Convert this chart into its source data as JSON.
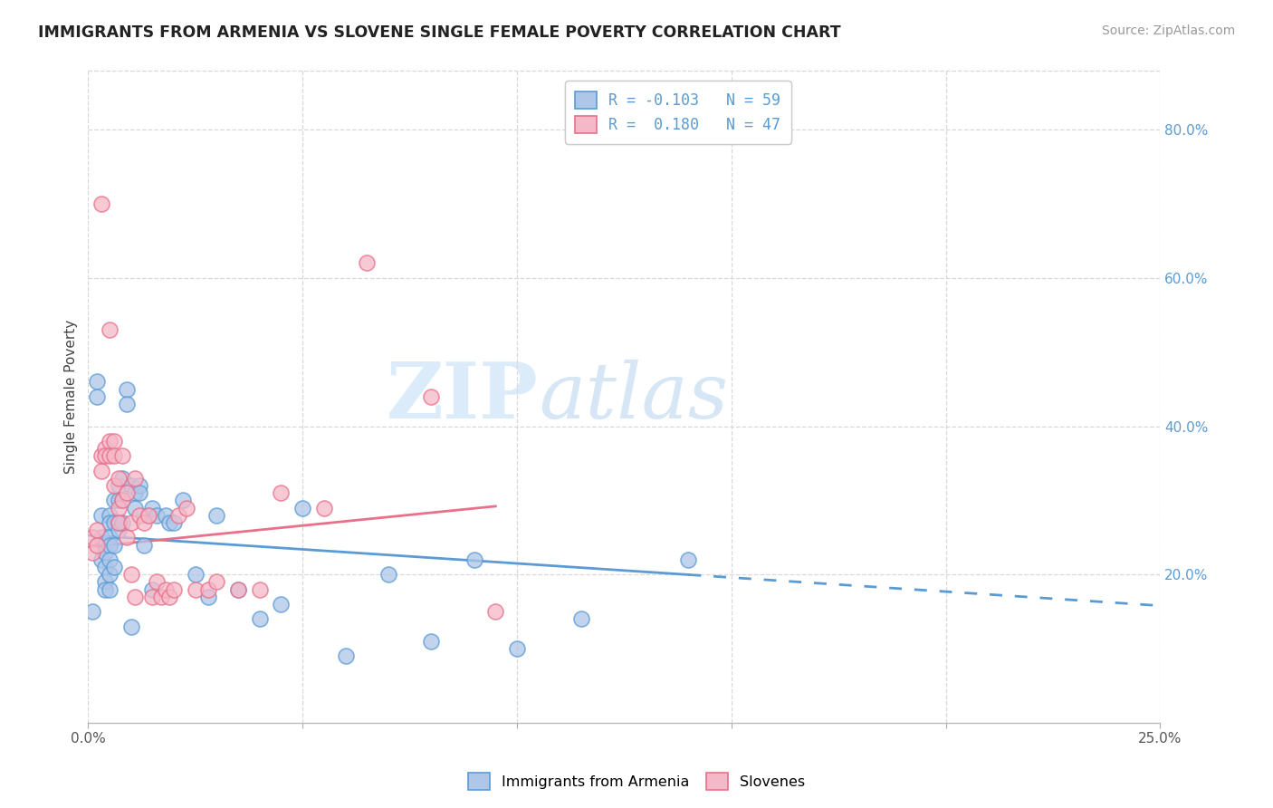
{
  "title": "IMMIGRANTS FROM ARMENIA VS SLOVENE SINGLE FEMALE POVERTY CORRELATION CHART",
  "source": "Source: ZipAtlas.com",
  "ylabel": "Single Female Poverty",
  "right_yticks": [
    "80.0%",
    "60.0%",
    "40.0%",
    "20.0%"
  ],
  "right_ytick_vals": [
    0.8,
    0.6,
    0.4,
    0.2
  ],
  "legend_entries": [
    {
      "label": "R = -0.103   N = 59"
    },
    {
      "label": "R =  0.180   N = 47"
    }
  ],
  "legend_bottom": [
    "Immigrants from Armenia",
    "Slovenes"
  ],
  "blue_color": "#5b9bd5",
  "pink_color": "#e8708a",
  "blue_fill": "#aec6e8",
  "pink_fill": "#f5b8c8",
  "armenia_x": [
    0.001,
    0.002,
    0.002,
    0.003,
    0.003,
    0.003,
    0.004,
    0.004,
    0.004,
    0.004,
    0.005,
    0.005,
    0.005,
    0.005,
    0.005,
    0.005,
    0.005,
    0.006,
    0.006,
    0.006,
    0.006,
    0.007,
    0.007,
    0.007,
    0.007,
    0.008,
    0.008,
    0.008,
    0.009,
    0.009,
    0.01,
    0.01,
    0.011,
    0.011,
    0.012,
    0.012,
    0.013,
    0.014,
    0.015,
    0.015,
    0.016,
    0.018,
    0.019,
    0.02,
    0.022,
    0.025,
    0.028,
    0.03,
    0.035,
    0.04,
    0.045,
    0.05,
    0.06,
    0.07,
    0.08,
    0.09,
    0.1,
    0.115,
    0.14
  ],
  "armenia_y": [
    0.15,
    0.46,
    0.44,
    0.28,
    0.25,
    0.22,
    0.23,
    0.21,
    0.19,
    0.18,
    0.28,
    0.27,
    0.25,
    0.24,
    0.22,
    0.2,
    0.18,
    0.3,
    0.27,
    0.24,
    0.21,
    0.32,
    0.3,
    0.27,
    0.26,
    0.33,
    0.3,
    0.27,
    0.45,
    0.43,
    0.32,
    0.13,
    0.31,
    0.29,
    0.32,
    0.31,
    0.24,
    0.28,
    0.29,
    0.18,
    0.28,
    0.28,
    0.27,
    0.27,
    0.3,
    0.2,
    0.17,
    0.28,
    0.18,
    0.14,
    0.16,
    0.29,
    0.09,
    0.2,
    0.11,
    0.22,
    0.1,
    0.14,
    0.22
  ],
  "slovene_x": [
    0.001,
    0.001,
    0.002,
    0.002,
    0.003,
    0.003,
    0.003,
    0.004,
    0.004,
    0.005,
    0.005,
    0.005,
    0.006,
    0.006,
    0.006,
    0.007,
    0.007,
    0.007,
    0.008,
    0.008,
    0.009,
    0.009,
    0.01,
    0.01,
    0.011,
    0.011,
    0.012,
    0.013,
    0.014,
    0.015,
    0.016,
    0.017,
    0.018,
    0.019,
    0.02,
    0.021,
    0.023,
    0.025,
    0.028,
    0.03,
    0.035,
    0.04,
    0.045,
    0.055,
    0.065,
    0.08,
    0.095
  ],
  "slovene_y": [
    0.25,
    0.23,
    0.26,
    0.24,
    0.7,
    0.36,
    0.34,
    0.37,
    0.36,
    0.53,
    0.38,
    0.36,
    0.38,
    0.36,
    0.32,
    0.33,
    0.29,
    0.27,
    0.36,
    0.3,
    0.31,
    0.25,
    0.27,
    0.2,
    0.33,
    0.17,
    0.28,
    0.27,
    0.28,
    0.17,
    0.19,
    0.17,
    0.18,
    0.17,
    0.18,
    0.28,
    0.29,
    0.18,
    0.18,
    0.19,
    0.18,
    0.18,
    0.31,
    0.29,
    0.62,
    0.44,
    0.15
  ],
  "xlim": [
    0.0,
    0.25
  ],
  "ylim": [
    0.0,
    0.88
  ],
  "watermark_zip": "ZIP",
  "watermark_atlas": "atlas",
  "background_color": "#ffffff",
  "grid_color": "#d8d8d8",
  "trend_blue_intercept": 0.253,
  "trend_blue_slope": -0.38,
  "trend_pink_intercept": 0.237,
  "trend_pink_slope": 0.58
}
